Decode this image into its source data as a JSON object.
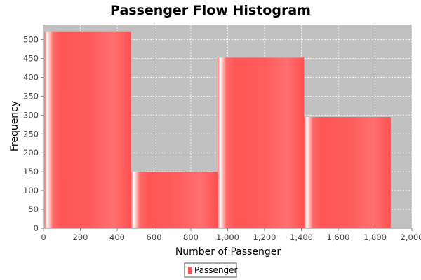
{
  "chart_data": {
    "type": "bar",
    "title": "Passenger Flow Histogram",
    "xlabel": "Number of Passenger",
    "ylabel": "Frequency",
    "xlim": [
      0,
      2000
    ],
    "ylim": [
      0,
      540
    ],
    "x_ticks": [
      0,
      200,
      400,
      600,
      800,
      1000,
      1200,
      1400,
      1600,
      1800,
      2000
    ],
    "x_tick_labels": [
      "0",
      "200",
      "400",
      "600",
      "800",
      "1,000",
      "1,200",
      "1,400",
      "1,600",
      "1,800",
      "2,000"
    ],
    "y_ticks": [
      0,
      50,
      100,
      150,
      200,
      250,
      300,
      350,
      400,
      450,
      500
    ],
    "y_tick_labels": [
      "0",
      "50",
      "100",
      "150",
      "200",
      "250",
      "300",
      "350",
      "400",
      "450",
      "500"
    ],
    "grid": true,
    "legend_position": "bottom",
    "series": [
      {
        "name": "Passenger",
        "color": "#ff5555",
        "bins": [
          {
            "start": 5,
            "end": 475,
            "value": 520
          },
          {
            "start": 475,
            "end": 945,
            "value": 150
          },
          {
            "start": 945,
            "end": 1415,
            "value": 452
          },
          {
            "start": 1415,
            "end": 1885,
            "value": 295
          }
        ]
      }
    ],
    "background_color": "#c0c0c0",
    "grid_color": "#ffffff"
  }
}
